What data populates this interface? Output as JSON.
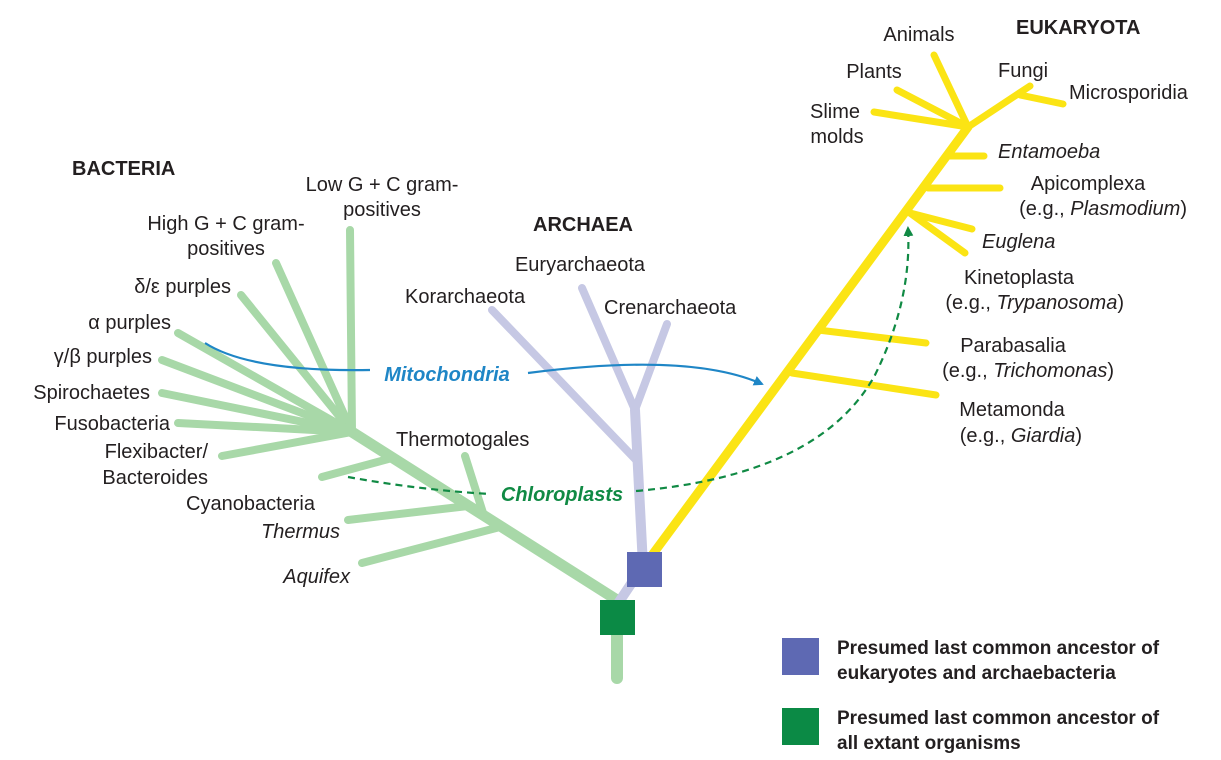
{
  "colors": {
    "bacteria": "#a8d8a8",
    "archaea": "#c6c8e4",
    "eukaryota": "#fbe414",
    "mitochondria_arrow": "#1f86c6",
    "chloroplast_arrow": "#108a44",
    "ancestor_euk_arch": "#5e69b3",
    "ancestor_all": "#0b8a45"
  },
  "domains": {
    "bacteria": "BACTERIA",
    "archaea": "ARCHAEA",
    "eukaryota": "EUKARYOTA"
  },
  "bacteria": {
    "low_gc_1": "Low G + C gram-",
    "low_gc_2": "positives",
    "high_gc_1": "High G + C gram-",
    "high_gc_2": "positives",
    "delta_epsilon": "δ/ε purples",
    "alpha": "α purples",
    "gamma_beta": "γ/β purples",
    "spirochaetes": "Spirochaetes",
    "fusobacteria": "Fusobacteria",
    "flexibacter_1": "Flexibacter/",
    "flexibacter_2": "Bacteroides",
    "cyanobacteria": "Cyanobacteria",
    "thermotogales": "Thermotogales",
    "thermus": "Thermus",
    "aquifex": "Aquifex"
  },
  "archaea": {
    "euryarchaeota": "Euryarchaeota",
    "korarchaeota": "Korarchaeota",
    "crenarchaeota": "Crenarchaeota"
  },
  "eukaryota": {
    "animals": "Animals",
    "plants": "Plants",
    "fungi": "Fungi",
    "microsporidia": "Microsporidia",
    "slime_1": "Slime",
    "slime_2": "molds",
    "entamoeba": "Entamoeba",
    "apicomplexa_1": "Apicomplexa",
    "apicomplexa_2a": "(e.g., ",
    "apicomplexa_2b": "Plasmodium",
    "apicomplexa_2c": ")",
    "euglena": "Euglena",
    "kinetoplasta_1": "Kinetoplasta",
    "kinetoplasta_2a": "(e.g., ",
    "kinetoplasta_2b": "Trypanosoma",
    "kinetoplasta_2c": ")",
    "parabasalia_1": "Parabasalia",
    "parabasalia_2a": "(e.g., ",
    "parabasalia_2b": "Trichomonas",
    "parabasalia_2c": ")",
    "metamonda_1": "Metamonda",
    "metamonda_2a": "(e.g., ",
    "metamonda_2b": "Giardia",
    "metamonda_2c": ")"
  },
  "transfers": {
    "mitochondria": "Mitochondria",
    "chloroplasts": "Chloroplasts"
  },
  "legend": {
    "item1_line1": "Presumed last common ancestor of",
    "item1_line2": "eukaryotes and archaebacteria",
    "item2_line1": "Presumed last common ancestor of",
    "item2_line2": "all extant organisms"
  }
}
